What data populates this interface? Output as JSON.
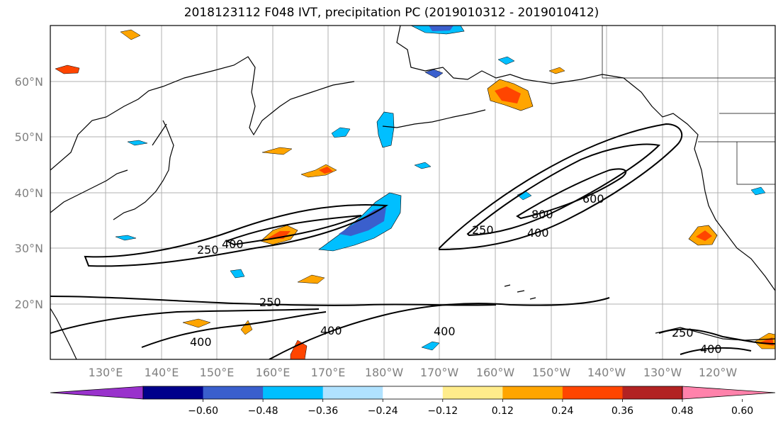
{
  "title": "2018123112 F048 IVT, precipitation PC (2019010312 - 2019010412)",
  "axes": {
    "lat_labels": [
      "60°N",
      "50°N",
      "40°N",
      "30°N",
      "20°N"
    ],
    "lon_labels": [
      "130°E",
      "140°E",
      "150°E",
      "160°E",
      "170°E",
      "180°W",
      "170°W",
      "160°W",
      "150°W",
      "140°W",
      "130°W",
      "120°W"
    ]
  },
  "colorbar": {
    "colors": [
      "#9932cc",
      "#00008b",
      "#3a5fcd",
      "#00bfff",
      "#b0e2ff",
      "#ffffff",
      "#ffec8b",
      "#ffa500",
      "#ff4500",
      "#b22222",
      "#ff82ab"
    ],
    "tick_labels": [
      "−0.60",
      "−0.48",
      "−0.36",
      "−0.24",
      "−0.12",
      "0.12",
      "0.24",
      "0.36",
      "0.48",
      "0.60"
    ]
  },
  "contour_labels": [
    "250",
    "400",
    "250",
    "400",
    "400",
    "400",
    "250",
    "400",
    "800",
    "600",
    "250",
    "400"
  ]
}
